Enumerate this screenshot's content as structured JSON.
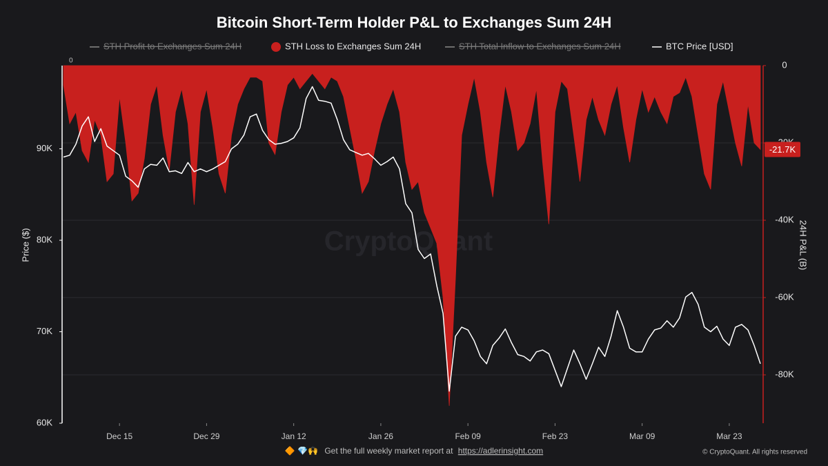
{
  "chart_data": {
    "type": "area-line",
    "title": "Bitcoin Short-Term Holder P&L to Exchanges Sum 24H",
    "ylabel": "Price ($)",
    "y2label": "24H P&L (B)",
    "watermark": "CryptoQuant",
    "corner_label": "0",
    "x": [
      "Dec 06",
      "Dec 07",
      "Dec 08",
      "Dec 09",
      "Dec 10",
      "Dec 11",
      "Dec 12",
      "Dec 13",
      "Dec 14",
      "Dec 15",
      "Dec 16",
      "Dec 17",
      "Dec 18",
      "Dec 19",
      "Dec 20",
      "Dec 21",
      "Dec 22",
      "Dec 23",
      "Dec 24",
      "Dec 25",
      "Dec 26",
      "Dec 27",
      "Dec 28",
      "Dec 29",
      "Dec 30",
      "Dec 31",
      "Jan 01",
      "Jan 02",
      "Jan 03",
      "Jan 04",
      "Jan 05",
      "Jan 06",
      "Jan 07",
      "Jan 08",
      "Jan 09",
      "Jan 10",
      "Jan 11",
      "Jan 12",
      "Jan 13",
      "Jan 14",
      "Jan 15",
      "Jan 16",
      "Jan 17",
      "Jan 18",
      "Jan 19",
      "Jan 20",
      "Jan 21",
      "Jan 22",
      "Jan 23",
      "Jan 24",
      "Jan 25",
      "Jan 26",
      "Jan 27",
      "Jan 28",
      "Jan 29",
      "Jan 30",
      "Jan 31",
      "Feb 01",
      "Feb 02",
      "Feb 03",
      "Feb 04",
      "Feb 05",
      "Feb 06",
      "Feb 07",
      "Feb 08",
      "Feb 09",
      "Feb 10",
      "Feb 11",
      "Feb 12",
      "Feb 13",
      "Feb 14",
      "Feb 15",
      "Feb 16",
      "Feb 17",
      "Feb 18",
      "Feb 19",
      "Feb 20",
      "Feb 21",
      "Feb 22",
      "Feb 23",
      "Feb 24",
      "Feb 25",
      "Feb 26",
      "Feb 27",
      "Feb 28",
      "Mar 01",
      "Mar 02",
      "Mar 03",
      "Mar 04",
      "Mar 05",
      "Mar 06",
      "Mar 07",
      "Mar 08",
      "Mar 09",
      "Mar 10",
      "Mar 11",
      "Mar 12",
      "Mar 13",
      "Mar 14",
      "Mar 15",
      "Mar 16",
      "Mar 17",
      "Mar 18",
      "Mar 19",
      "Mar 20",
      "Mar 21",
      "Mar 22",
      "Mar 23",
      "Mar 24",
      "Mar 25",
      "Mar 26",
      "Mar 27",
      "Mar 28"
    ],
    "xticks": [
      "Dec 15",
      "Dec 29",
      "Jan 12",
      "Jan 26",
      "Feb 09",
      "Feb 23",
      "Mar 09",
      "Mar 23"
    ],
    "ylim": [
      60000,
      99100
    ],
    "yticks": [
      {
        "value": 60000,
        "label": "60K"
      },
      {
        "value": 70000,
        "label": "70K"
      },
      {
        "value": 80000,
        "label": "80K"
      },
      {
        "value": 90000,
        "label": "90K"
      }
    ],
    "y2lim": [
      -92500,
      0
    ],
    "y2ticks": [
      0,
      {
        "value": -20000,
        "label": "-20K"
      },
      {
        "value": -40000,
        "label": "-40K"
      },
      {
        "value": -60000,
        "label": "-60K"
      },
      {
        "value": -80000,
        "label": "-80K"
      }
    ],
    "grid": true,
    "series": [
      {
        "name": "STH Profit to Exchanges Sum 24H",
        "color": "#8a8a8a",
        "hidden": true
      },
      {
        "name": "STH Loss to Exchanges Sum 24H",
        "color": "#c8201e",
        "axis": "y2",
        "type": "area",
        "values": [
          -5000,
          -15000,
          -12000,
          -22000,
          -25000,
          -14000,
          -18000,
          -30000,
          -28000,
          -8000,
          -20000,
          -35000,
          -33000,
          -24000,
          -10000,
          -5000,
          -18000,
          -27000,
          -12000,
          -6000,
          -15000,
          -36000,
          -12000,
          -6000,
          -16000,
          -28000,
          -33000,
          -18000,
          -10000,
          -6000,
          -3000,
          -3000,
          -4000,
          -20000,
          -23000,
          -12000,
          -5000,
          -3000,
          -6000,
          -4000,
          -2000,
          -4000,
          -6000,
          -3000,
          -4000,
          -8000,
          -16000,
          -24000,
          -33000,
          -30000,
          -22000,
          -15000,
          -10000,
          -6000,
          -12000,
          -25000,
          -32000,
          -30000,
          -38000,
          -42000,
          -46000,
          -60000,
          -88000,
          -55000,
          -18000,
          -10000,
          -3000,
          -12000,
          -25000,
          -34000,
          -18000,
          -5000,
          -12000,
          -22000,
          -20000,
          -15000,
          -6000,
          -25000,
          -41000,
          -12000,
          -4000,
          -6000,
          -18000,
          -30000,
          -14000,
          -8000,
          -14000,
          -18000,
          -10000,
          -5000,
          -16000,
          -25000,
          -14000,
          -6000,
          -12000,
          -8000,
          -12000,
          -15000,
          -8000,
          -7000,
          -3000,
          -8000,
          -18000,
          -28000,
          -32000,
          -10000,
          -4000,
          -12000,
          -20000,
          -26000,
          -10000,
          -20000,
          -21700
        ],
        "last_value": {
          "value": -21700,
          "label": "-21.7K"
        }
      },
      {
        "name": "STH Total Inflow to Exchanges Sum 24H",
        "color": "#8a8a8a",
        "hidden": true
      },
      {
        "name": "BTC Price [USD]",
        "color": "#ffffff",
        "type": "line",
        "values": [
          89100,
          89300,
          90500,
          92500,
          93500,
          90800,
          92200,
          90300,
          89800,
          89300,
          87000,
          86500,
          85800,
          87800,
          88300,
          88200,
          89000,
          87500,
          87600,
          87300,
          88500,
          87500,
          87800,
          87500,
          87800,
          88200,
          88600,
          90000,
          90500,
          91500,
          93500,
          93800,
          92000,
          91000,
          90500,
          90600,
          90800,
          91200,
          92300,
          95500,
          96800,
          95300,
          95200,
          95000,
          93200,
          91000,
          89900,
          89600,
          89300,
          89500,
          88900,
          88200,
          88600,
          89100,
          87800,
          84000,
          83000,
          79000,
          78000,
          78500,
          75000,
          72000,
          63500,
          69500,
          70500,
          70200,
          69000,
          67300,
          66500,
          68500,
          69300,
          70300,
          68800,
          67500,
          67300,
          66800,
          67800,
          68000,
          67600,
          65800,
          64000,
          66000,
          68000,
          66500,
          64800,
          66500,
          68300,
          67300,
          69500,
          72300,
          70500,
          68200,
          67800,
          67800,
          69200,
          70200,
          70400,
          71200,
          70500,
          71500,
          73800,
          74300,
          73000,
          70500,
          70000,
          70600,
          69200,
          68500,
          70500,
          70800,
          70200,
          68500,
          66500
        ]
      }
    ],
    "footer": {
      "icons": "🔶 💎🙌",
      "text": "Get the full weekly market report at",
      "link": "https://adlerinsight.com",
      "copyright": "© CryptoQuant. All rights reserved"
    }
  }
}
